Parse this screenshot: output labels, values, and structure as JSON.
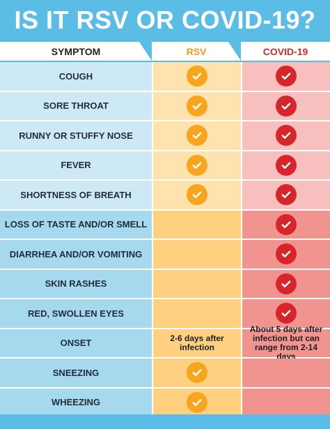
{
  "title": "IS IT RSV OR COVID-19?",
  "headers": {
    "symptom": "SYMPTOM",
    "rsv": "RSV",
    "covid": "COVID-19"
  },
  "colors": {
    "background": "#5bbde6",
    "rsv_accent": "#f59d1b",
    "covid_accent": "#d7292b"
  },
  "check_icon": "check-circle-icon",
  "rows": [
    {
      "symptom": "COUGH",
      "rsv": true,
      "covid": true
    },
    {
      "symptom": "SORE THROAT",
      "rsv": true,
      "covid": true
    },
    {
      "symptom": "RUNNY OR STUFFY NOSE",
      "rsv": true,
      "covid": true
    },
    {
      "symptom": "FEVER",
      "rsv": true,
      "covid": true
    },
    {
      "symptom": "SHORTNESS OF BREATH",
      "rsv": true,
      "covid": true
    },
    {
      "symptom": "LOSS OF TASTE AND/OR SMELL",
      "rsv": false,
      "covid": true
    },
    {
      "symptom": "DIARRHEA AND/OR VOMITING",
      "rsv": false,
      "covid": true
    },
    {
      "symptom": "SKIN RASHES",
      "rsv": false,
      "covid": true
    },
    {
      "symptom": "RED, SWOLLEN EYES",
      "rsv": false,
      "covid": true
    },
    {
      "symptom": "ONSET",
      "rsv_text": "2-6 days after infection",
      "covid_text": "About 5 days after infection but can range from 2-14 days"
    },
    {
      "symptom": "SNEEZING",
      "rsv": true,
      "covid": false
    },
    {
      "symptom": "WHEEZING",
      "rsv": true,
      "covid": false
    }
  ]
}
